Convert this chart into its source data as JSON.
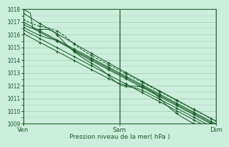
{
  "xlabel": "Pression niveau de la mer( hPa )",
  "ylim": [
    1009,
    1018
  ],
  "yticks": [
    1009,
    1010,
    1011,
    1012,
    1013,
    1014,
    1015,
    1016,
    1017,
    1018
  ],
  "xtick_labels": [
    "Ven",
    "Sam",
    "Dim"
  ],
  "xtick_positions": [
    0.0,
    0.5,
    1.0
  ],
  "bg_color": "#cceedd",
  "grid_color": "#99ccaa",
  "line_color": "#1a5c2a",
  "fig_bg": "#cceedd",
  "marker_color": "#1a5c2a"
}
